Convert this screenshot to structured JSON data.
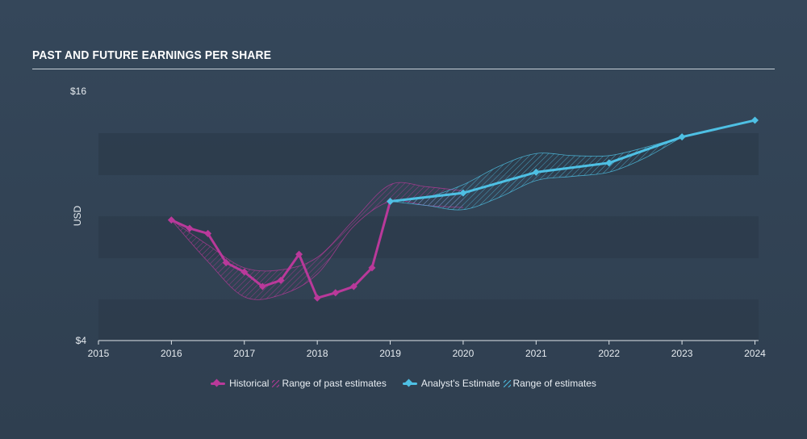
{
  "header": {
    "title": "PAST AND FUTURE EARNINGS PER SHARE"
  },
  "colors": {
    "historical": "#b9399a",
    "estimate": "#4ec0e4",
    "band": "#2c3b4b"
  },
  "legend": {
    "historical": "Historical",
    "past_range": "Range of past estimates",
    "estimate": "Analyst's Estimate",
    "future_range": "Range of estimates"
  },
  "chart_data": {
    "type": "line",
    "title": "PAST AND FUTURE EARNINGS PER SHARE",
    "ylabel": "USD",
    "xlim": [
      2015,
      2024.05
    ],
    "ylim": [
      4,
      16
    ],
    "y_ticks": [
      {
        "value": 16,
        "label": "$16"
      },
      {
        "value": 4,
        "label": "$4"
      }
    ],
    "x_ticks": [
      {
        "value": 2015,
        "label": "2015"
      },
      {
        "value": 2016,
        "label": "2016"
      },
      {
        "value": 2017,
        "label": "2017"
      },
      {
        "value": 2018,
        "label": "2018"
      },
      {
        "value": 2019,
        "label": "2019"
      },
      {
        "value": 2020,
        "label": "2020"
      },
      {
        "value": 2021,
        "label": "2021"
      },
      {
        "value": 2022,
        "label": "2022"
      },
      {
        "value": 2023,
        "label": "2023"
      },
      {
        "value": 2024,
        "label": "2024"
      }
    ],
    "series": [
      {
        "name": "Historical",
        "x": [
          2016.0,
          2016.25,
          2016.5,
          2016.75,
          2017.0,
          2017.25,
          2017.5,
          2017.75,
          2018.0,
          2018.25,
          2018.5,
          2018.75,
          2019.0
        ],
        "y": [
          9.8,
          9.4,
          9.15,
          7.75,
          7.3,
          6.6,
          6.9,
          8.15,
          6.05,
          6.3,
          6.6,
          7.5,
          10.7
        ]
      },
      {
        "name": "Analyst's Estimate",
        "x": [
          2019.0,
          2020.0,
          2021.0,
          2022.0,
          2023.0,
          2024.0
        ],
        "y": [
          10.7,
          11.1,
          12.1,
          12.55,
          13.8,
          14.6
        ]
      }
    ],
    "past_estimate_range": {
      "x": [
        2016.0,
        2016.5,
        2017.0,
        2017.5,
        2018.0,
        2018.5,
        2019.0,
        2019.5,
        2020.0
      ],
      "upper": [
        9.8,
        8.6,
        7.5,
        7.4,
        8.0,
        9.8,
        11.5,
        11.4,
        11.2
      ],
      "lower": [
        9.8,
        7.8,
        6.1,
        6.2,
        7.2,
        9.5,
        10.7,
        10.5,
        10.4
      ]
    },
    "future_estimate_range": {
      "x": [
        2019.0,
        2019.5,
        2020.0,
        2020.5,
        2021.0,
        2021.5,
        2022.0,
        2022.5,
        2023.0
      ],
      "upper": [
        10.7,
        10.9,
        11.5,
        12.4,
        13.0,
        12.9,
        12.9,
        13.3,
        13.8
      ],
      "lower": [
        10.7,
        10.5,
        10.3,
        10.9,
        11.7,
        11.9,
        12.1,
        12.8,
        13.8
      ]
    },
    "grid": false
  }
}
